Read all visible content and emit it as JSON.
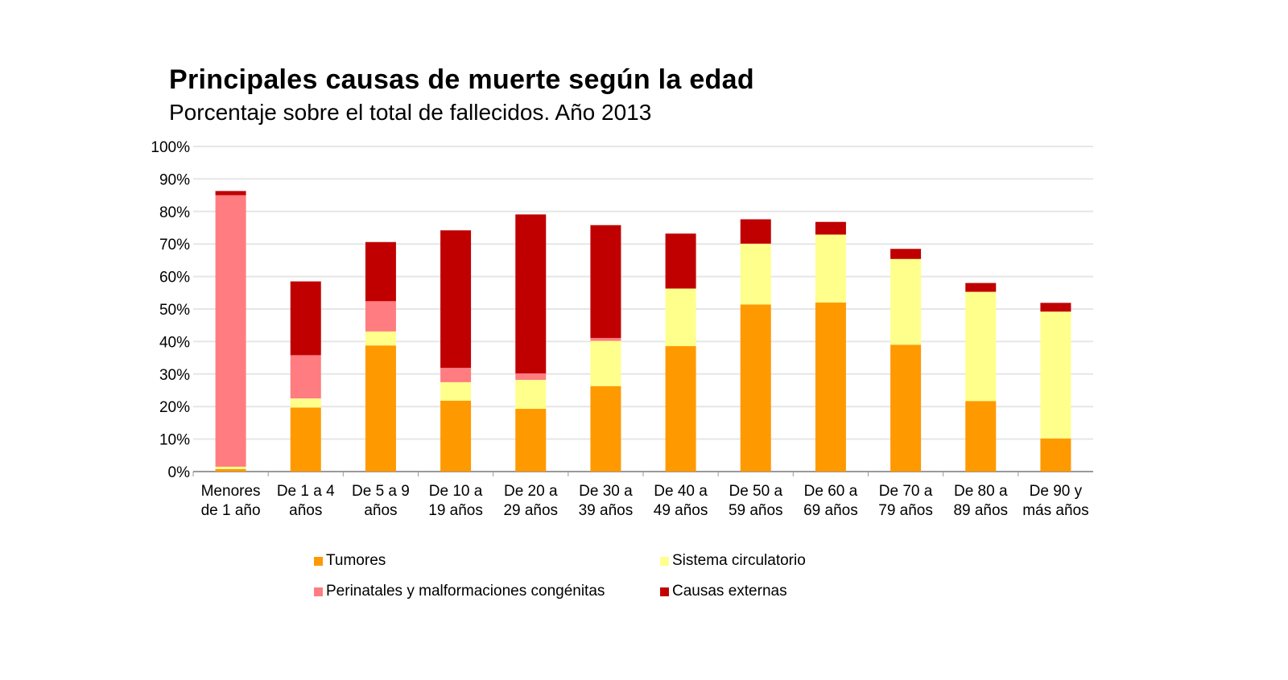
{
  "chart_data": {
    "type": "bar",
    "stacked": true,
    "title": "Principales causas de muerte según la edad",
    "subtitle": "Porcentaje sobre el total de fallecidos. Año 2013",
    "xlabel": "",
    "ylabel": "",
    "ylim": [
      0,
      100
    ],
    "yticks": [
      "0%",
      "10%",
      "20%",
      "30%",
      "40%",
      "50%",
      "60%",
      "70%",
      "80%",
      "90%",
      "100%"
    ],
    "grid": true,
    "legend_position": "bottom",
    "categories": [
      [
        "Menores",
        "de 1 año"
      ],
      [
        "De 1 a 4",
        "años"
      ],
      [
        "De 5 a 9",
        "años"
      ],
      [
        "De 10 a",
        "19 años"
      ],
      [
        "De 20 a",
        "29 años"
      ],
      [
        "De 30 a",
        "39 años"
      ],
      [
        "De 40 a",
        "49 años"
      ],
      [
        "De 50 a",
        "59 años"
      ],
      [
        "De 60 a",
        "69 años"
      ],
      [
        "De 70 a",
        "79 años"
      ],
      [
        "De 80 a",
        "89 años"
      ],
      [
        "De 90 y",
        "más años"
      ]
    ],
    "series": [
      {
        "name": "Tumores",
        "color": "#FF9900",
        "values": [
          0.8,
          19.7,
          38.8,
          21.8,
          19.3,
          26.3,
          38.6,
          51.4,
          52.0,
          39.0,
          21.7,
          10.2
        ]
      },
      {
        "name": "Sistema circulatorio",
        "color": "#FFFF8C",
        "values": [
          0.7,
          2.8,
          4.3,
          5.7,
          8.9,
          13.9,
          17.7,
          18.7,
          20.9,
          26.4,
          33.6,
          39.0
        ]
      },
      {
        "name": "Perinatales y malformaciones congénitas",
        "color": "#FF7C80",
        "values": [
          83.5,
          13.3,
          9.3,
          4.4,
          2.0,
          0.9,
          0,
          0,
          0,
          0,
          0,
          0
        ]
      },
      {
        "name": "Causas externas",
        "color": "#C00000",
        "values": [
          1.3,
          22.7,
          18.2,
          42.3,
          48.9,
          34.7,
          16.9,
          7.5,
          3.9,
          3.1,
          2.7,
          2.7
        ]
      }
    ]
  }
}
